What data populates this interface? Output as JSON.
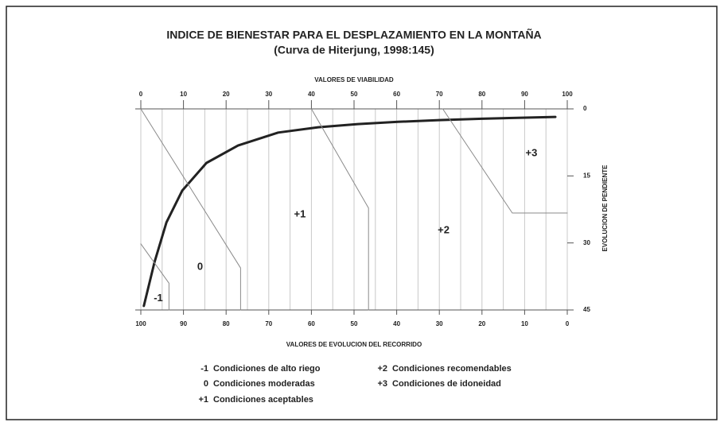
{
  "chart_data": {
    "type": "line",
    "title": "INDICE DE BIENESTAR PARA EL DESPLAZAMIENTO EN LA MONTAÑA",
    "subtitle": "(Curva de Hiterjung, 1998:145)",
    "x_label": "VALORES DE VIABILIDAD",
    "x2_label": "VALORES DE EVOLUCION DEL RECORRIDO",
    "y_label": "EVOLUCION DE PENDIENTE",
    "xlim": [
      0,
      100
    ],
    "xticks": [
      0,
      10,
      20,
      30,
      40,
      50,
      60,
      70,
      80,
      90,
      100
    ],
    "xminorticks": [
      5,
      15,
      25,
      35,
      45,
      55,
      65,
      75,
      85,
      95
    ],
    "x2lim": [
      100,
      0
    ],
    "x2ticks": [
      100,
      90,
      80,
      70,
      60,
      50,
      40,
      30,
      20,
      10,
      0
    ],
    "ylim": [
      45,
      0
    ],
    "yticks": [
      0,
      15,
      30,
      45
    ],
    "grid": true,
    "series": [
      {
        "name": "curve",
        "color": "#222222",
        "width": 3,
        "x": [
          0.7,
          3.2,
          6.0,
          9.7,
          15.4,
          22.8,
          32.2,
          41.6,
          50.9,
          60.3,
          70,
          80,
          97.2
        ],
        "values": [
          44.1,
          34.3,
          25.4,
          18.3,
          12.1,
          8.2,
          5.3,
          4.1,
          3.4,
          2.9,
          2.5,
          2.2,
          1.8
        ]
      },
      {
        "name": "limit -1",
        "color": "#8a8a8a",
        "width": 1,
        "x": [
          0,
          6.6,
          6.6
        ],
        "values": [
          30.2,
          39,
          45
        ]
      },
      {
        "name": "limit 0",
        "color": "#8a8a8a",
        "width": 1,
        "x": [
          0,
          23.4,
          23.4
        ],
        "values": [
          0,
          35.6,
          45
        ]
      },
      {
        "name": "limit +1",
        "color": "#8a8a8a",
        "width": 1,
        "x": [
          40,
          53.4,
          53.4
        ],
        "values": [
          0,
          22.2,
          45
        ]
      },
      {
        "name": "limit +2",
        "color": "#8a8a8a",
        "width": 1,
        "x": [
          70.8,
          87.1,
          100
        ],
        "values": [
          0,
          23.3,
          23.3
        ]
      }
    ],
    "annotations": [
      {
        "text": "-1",
        "x": 4.1,
        "y": 42.4
      },
      {
        "text": "0",
        "x": 13.9,
        "y": 35.4
      },
      {
        "text": "+1",
        "x": 37.3,
        "y": 23.7
      },
      {
        "text": "+2",
        "x": 71,
        "y": 27.2
      },
      {
        "text": "+3",
        "x": 91.6,
        "y": 10
      }
    ],
    "legend": [
      {
        "symbol": "-1",
        "text": "Condiciones de alto riego"
      },
      {
        "symbol": "0",
        "text": "Condiciones moderadas"
      },
      {
        "symbol": "+1",
        "text": "Condiciones aceptables"
      },
      {
        "symbol": "+2",
        "text": "Condiciones recomendables"
      },
      {
        "symbol": "+3",
        "text": "Condiciones de idoneidad"
      }
    ]
  }
}
